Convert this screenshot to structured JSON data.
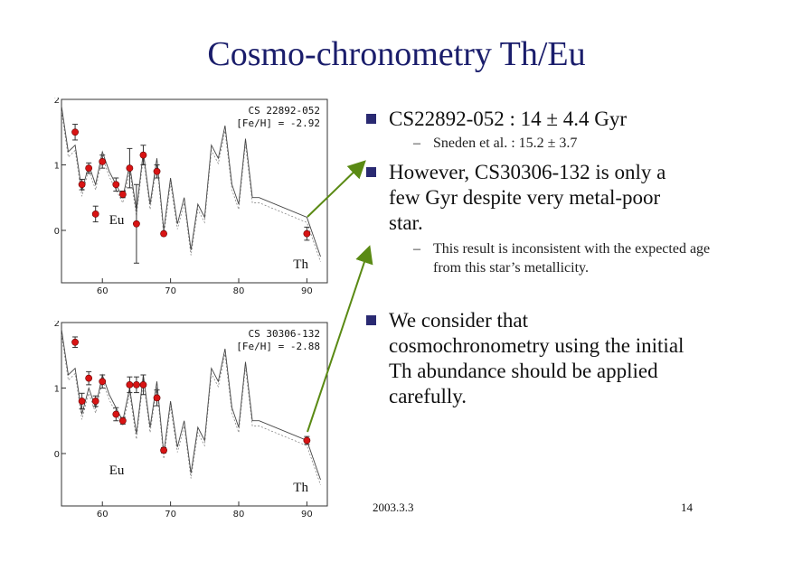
{
  "title": "Cosmo-chronometry Th/Eu",
  "bullets": [
    {
      "text": "CS22892-052 : 14 ± 4.4 Gyr",
      "subs": [
        "Sneden et al. : 15.2 ± 3.7"
      ]
    },
    {
      "text": "However, CS30306-132 is only a few Gyr despite very metal-poor star.",
      "subs": [
        "This result is inconsistent with the expected age from this star’s metallicity."
      ]
    },
    {
      "text": "We consider that cosmochronometry using the initial Th abundance should be applied carefully.",
      "subs": []
    }
  ],
  "footer": {
    "date": "2003.3.3",
    "page": "14"
  },
  "chart_data": [
    {
      "type": "scatter",
      "title": "CS 22892-052",
      "subtitle": "[Fe/H] = -2.92",
      "xticks": [
        "60",
        "70",
        "80",
        "90"
      ],
      "yticks": [
        "0",
        "1",
        "2"
      ],
      "xlim": [
        54,
        93
      ],
      "ylim": [
        -0.8,
        2.0
      ],
      "labels": [
        "Eu",
        "Th"
      ],
      "points": {
        "x": [
          56,
          57,
          58,
          59,
          60,
          62,
          63,
          64,
          65,
          66,
          68,
          69,
          90
        ],
        "y": [
          1.5,
          0.7,
          0.95,
          0.25,
          1.05,
          0.7,
          0.55,
          0.95,
          0.1,
          1.15,
          0.9,
          -0.05,
          -0.05
        ],
        "err": [
          0.12,
          0.08,
          0.08,
          0.12,
          0.1,
          0.1,
          0.05,
          0.3,
          0.6,
          0.15,
          0.1,
          0.03,
          0.1
        ]
      },
      "model": {
        "x": [
          54,
          55,
          56,
          57,
          58,
          59,
          60,
          61,
          62,
          63,
          64,
          65,
          66,
          67,
          68,
          69,
          70,
          71,
          72,
          73,
          74,
          75,
          76,
          77,
          78,
          79,
          80,
          81,
          82,
          83,
          90,
          92
        ],
        "y": [
          1.9,
          1.2,
          1.3,
          0.6,
          1.0,
          0.7,
          1.2,
          0.9,
          0.7,
          0.5,
          1.0,
          0.3,
          1.2,
          0.4,
          1.1,
          0.0,
          0.8,
          0.1,
          0.5,
          -0.3,
          0.4,
          0.2,
          1.3,
          1.1,
          1.6,
          0.7,
          0.4,
          1.4,
          0.5,
          0.5,
          0.2,
          -0.4
        ]
      }
    },
    {
      "type": "scatter",
      "title": "CS 30306-132",
      "subtitle": "[Fe/H] = -2.88",
      "xticks": [
        "60",
        "70",
        "80",
        "90"
      ],
      "yticks": [
        "0",
        "1",
        "2"
      ],
      "xlim": [
        54,
        93
      ],
      "ylim": [
        -0.8,
        2.0
      ],
      "labels": [
        "Eu",
        "Th"
      ],
      "points": {
        "x": [
          56,
          57,
          58,
          59,
          60,
          62,
          63,
          64,
          65,
          66,
          68,
          69,
          90
        ],
        "y": [
          1.7,
          0.8,
          1.15,
          0.8,
          1.1,
          0.6,
          0.5,
          1.05,
          1.05,
          1.05,
          0.85,
          0.05,
          0.2
        ],
        "err": [
          0.08,
          0.12,
          0.1,
          0.08,
          0.1,
          0.1,
          0.05,
          0.12,
          0.12,
          0.15,
          0.12,
          0.04,
          0.06
        ]
      },
      "model": {
        "x": [
          54,
          55,
          56,
          57,
          58,
          59,
          60,
          61,
          62,
          63,
          64,
          65,
          66,
          67,
          68,
          69,
          70,
          71,
          72,
          73,
          74,
          75,
          76,
          77,
          78,
          79,
          80,
          81,
          82,
          83,
          90,
          92
        ],
        "y": [
          1.9,
          1.2,
          1.3,
          0.6,
          1.0,
          0.7,
          1.2,
          0.9,
          0.7,
          0.5,
          1.0,
          0.3,
          1.2,
          0.4,
          1.1,
          0.0,
          0.8,
          0.1,
          0.5,
          -0.3,
          0.4,
          0.2,
          1.3,
          1.1,
          1.6,
          0.7,
          0.4,
          1.4,
          0.5,
          0.5,
          0.2,
          -0.4
        ]
      }
    }
  ]
}
